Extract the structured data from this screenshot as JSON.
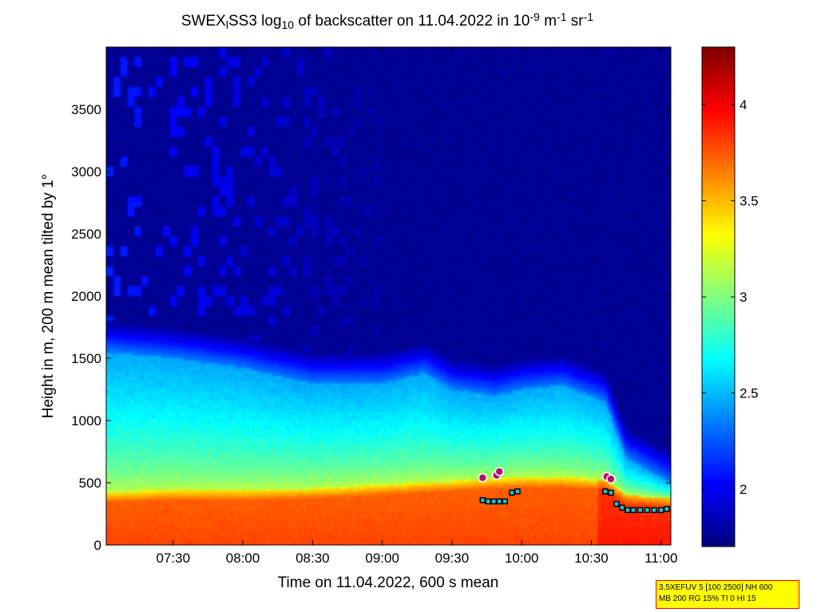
{
  "chart_data": {
    "type": "heatmap",
    "title": {
      "parts": [
        {
          "t": "SWEX",
          "s": "n"
        },
        {
          "t": "l",
          "s": "sub"
        },
        {
          "t": "SS3 log",
          "s": "n"
        },
        {
          "t": "10",
          "s": "sub"
        },
        {
          "t": " of backscatter on 11.04.2022 in 10",
          "s": "n"
        },
        {
          "t": "-9",
          "s": "sup"
        },
        {
          "t": " m",
          "s": "n"
        },
        {
          "t": "-1",
          "s": "sup"
        },
        {
          "t": " sr",
          "s": "n"
        },
        {
          "t": "-1",
          "s": "sup"
        }
      ]
    },
    "xlabel": "Time on 11.04.2022, 600 s mean",
    "ylabel": "Height in m, 200 m mean tilted by 1°",
    "x_range_hours": [
      7.02,
      11.07
    ],
    "x_ticks": [
      {
        "v": 7.5,
        "label": "07:30"
      },
      {
        "v": 8.0,
        "label": "08:00"
      },
      {
        "v": 8.5,
        "label": "08:30"
      },
      {
        "v": 9.0,
        "label": "09:00"
      },
      {
        "v": 9.5,
        "label": "09:30"
      },
      {
        "v": 10.0,
        "label": "10:00"
      },
      {
        "v": 10.5,
        "label": "10:30"
      },
      {
        "v": 11.0,
        "label": "11:00"
      }
    ],
    "y_range": [
      0,
      4000
    ],
    "y_ticks": [
      0,
      500,
      1000,
      1500,
      2000,
      2500,
      3000,
      3500
    ],
    "colorbar": {
      "range": [
        1.7,
        4.3
      ],
      "ticks": [
        2,
        2.5,
        3,
        3.5,
        4
      ],
      "tick_labels": [
        "2",
        "2.5",
        "3",
        "3.5",
        "4"
      ],
      "colormap": "jet"
    },
    "layer_profile": [
      {
        "t": 7.02,
        "pbl": 1550,
        "aerosol": 420
      },
      {
        "t": 7.5,
        "pbl": 1500,
        "aerosol": 440
      },
      {
        "t": 8.0,
        "pbl": 1420,
        "aerosol": 440
      },
      {
        "t": 8.5,
        "pbl": 1300,
        "aerosol": 450
      },
      {
        "t": 9.0,
        "pbl": 1300,
        "aerosol": 480
      },
      {
        "t": 9.3,
        "pbl": 1380,
        "aerosol": 500
      },
      {
        "t": 9.5,
        "pbl": 1250,
        "aerosol": 510
      },
      {
        "t": 9.8,
        "pbl": 1200,
        "aerosol": 530
      },
      {
        "t": 10.0,
        "pbl": 1250,
        "aerosol": 540
      },
      {
        "t": 10.3,
        "pbl": 1280,
        "aerosol": 540
      },
      {
        "t": 10.6,
        "pbl": 1150,
        "aerosol": 520
      },
      {
        "t": 10.75,
        "pbl": 700,
        "aerosol": 400
      },
      {
        "t": 11.07,
        "pbl": 500,
        "aerosol": 370
      }
    ],
    "cloud_base_markers": [
      {
        "t": 9.72,
        "h": 360
      },
      {
        "t": 9.76,
        "h": 350
      },
      {
        "t": 9.8,
        "h": 350
      },
      {
        "t": 9.84,
        "h": 350
      },
      {
        "t": 9.88,
        "h": 350
      },
      {
        "t": 9.93,
        "h": 420
      },
      {
        "t": 9.97,
        "h": 430
      },
      {
        "t": 10.6,
        "h": 430
      },
      {
        "t": 10.64,
        "h": 420
      },
      {
        "t": 10.68,
        "h": 330
      },
      {
        "t": 10.72,
        "h": 300
      },
      {
        "t": 10.76,
        "h": 280
      },
      {
        "t": 10.8,
        "h": 280
      },
      {
        "t": 10.85,
        "h": 280
      },
      {
        "t": 10.9,
        "h": 280
      },
      {
        "t": 10.95,
        "h": 280
      },
      {
        "t": 11.0,
        "h": 280
      },
      {
        "t": 11.04,
        "h": 290
      }
    ],
    "cloud_top_markers": [
      {
        "t": 9.72,
        "h": 540
      },
      {
        "t": 9.82,
        "h": 560
      },
      {
        "t": 9.84,
        "h": 590
      },
      {
        "t": 10.61,
        "h": 550
      },
      {
        "t": 10.64,
        "h": 530
      }
    ]
  },
  "info_box": {
    "line1": "3.5XEFUV 5 [100 2500] NH 600",
    "line2": "MB 200 RG 15% TI 0 HI 15"
  }
}
